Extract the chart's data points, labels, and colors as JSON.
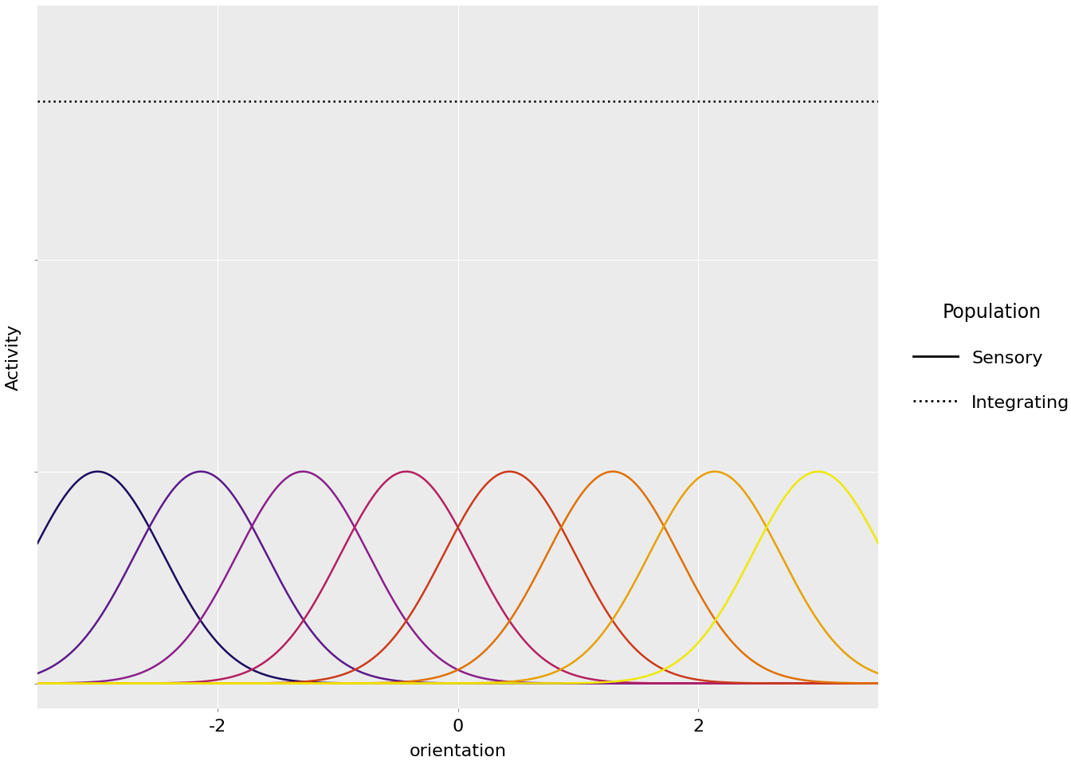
{
  "n_neurons": 8,
  "x_min": -3.5,
  "x_max": 3.5,
  "sigma": 0.55,
  "neuron_centers": [
    -3.0,
    -2.14,
    -1.29,
    -0.43,
    0.43,
    1.29,
    2.14,
    3.0
  ],
  "neuron_colors": [
    "#1A0B5E",
    "#5B1A8A",
    "#8B1F8A",
    "#B52060",
    "#CC3A1A",
    "#E07000",
    "#E8A000",
    "#F0E800"
  ],
  "integrating_y": 2.75,
  "integrating_color": "#000000",
  "background_color": "#EBEBEB",
  "grid_color": "#FFFFFF",
  "ylabel": "Activity",
  "xlabel": "orientation",
  "legend_title": "Population",
  "legend_sensory": "Sensory",
  "legend_integrating": "Integrating",
  "xlim": [
    -3.5,
    3.5
  ],
  "ylim": [
    -0.12,
    3.2
  ],
  "ytick_positions": [
    0.0,
    1.0,
    2.0
  ],
  "xtick_positions": [
    -2,
    0,
    2
  ],
  "figsize": [
    13.44,
    9.6
  ],
  "dpi": 100
}
